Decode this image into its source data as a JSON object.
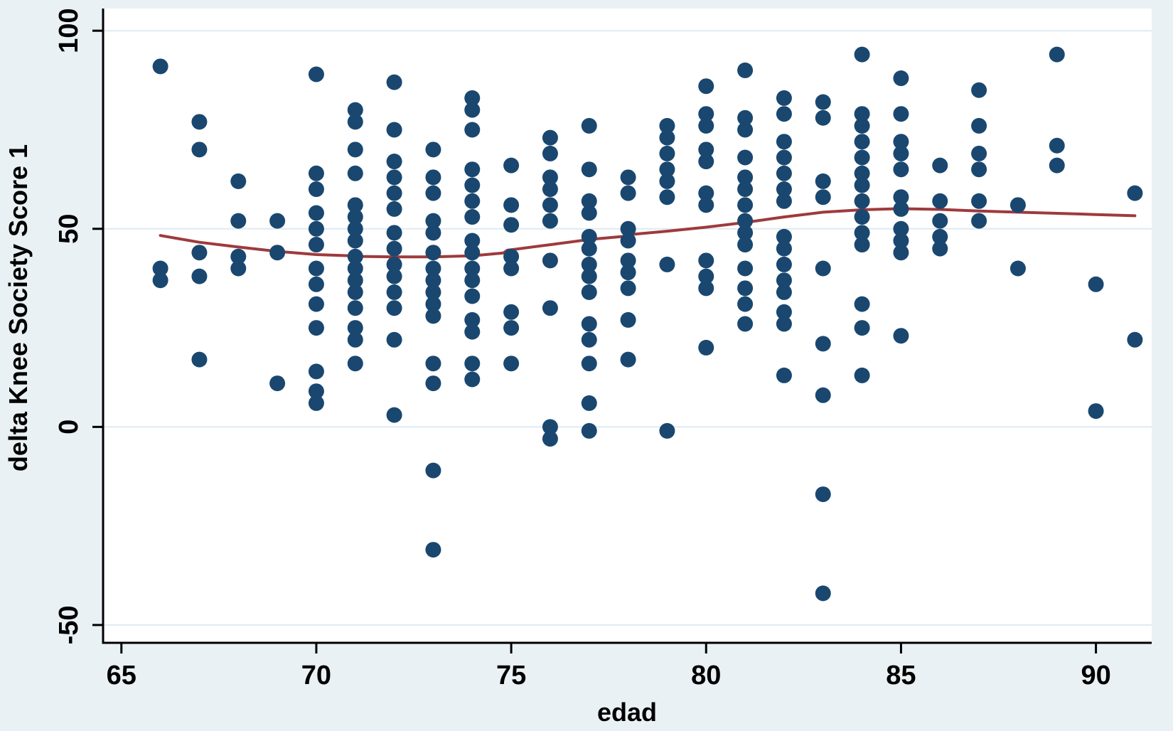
{
  "chart_data": {
    "type": "scatter",
    "title": "",
    "xlabel": "edad",
    "ylabel": "delta Knee Society Score 1",
    "x_ticks": [
      65,
      70,
      75,
      80,
      85,
      90
    ],
    "y_ticks": [
      100,
      50,
      0,
      -50
    ],
    "xlim": [
      64.53,
      91.43
    ],
    "ylim": [
      -54.5,
      105.6
    ],
    "grid": "horizontal-only",
    "legend": "none",
    "marker_shape": "filled-circle",
    "colors": {
      "marker": "#1a476f",
      "lowess_line": "#9e3a3c",
      "outer_background": "#eaf1f5",
      "plot_background": "#ffffff",
      "gridline": "#dfeaf2",
      "axis": "#000000"
    },
    "series": [
      {
        "name": "scatter",
        "points": [
          [
            66,
            91
          ],
          [
            66,
            40
          ],
          [
            66,
            37
          ],
          [
            67,
            77
          ],
          [
            67,
            70
          ],
          [
            67,
            44
          ],
          [
            67,
            38
          ],
          [
            67,
            17
          ],
          [
            68,
            62
          ],
          [
            68,
            52
          ],
          [
            68,
            43
          ],
          [
            68,
            40
          ],
          [
            69,
            52
          ],
          [
            69,
            44
          ],
          [
            69,
            11
          ],
          [
            70,
            89
          ],
          [
            70,
            64
          ],
          [
            70,
            60
          ],
          [
            70,
            54
          ],
          [
            70,
            50
          ],
          [
            70,
            46
          ],
          [
            70,
            40
          ],
          [
            70,
            36
          ],
          [
            70,
            31
          ],
          [
            70,
            25
          ],
          [
            70,
            14
          ],
          [
            70,
            9
          ],
          [
            70,
            6
          ],
          [
            71,
            80
          ],
          [
            71,
            77
          ],
          [
            71,
            70
          ],
          [
            71,
            64
          ],
          [
            71,
            56
          ],
          [
            71,
            53
          ],
          [
            71,
            50
          ],
          [
            71,
            47
          ],
          [
            71,
            43
          ],
          [
            71,
            40
          ],
          [
            71,
            37
          ],
          [
            71,
            34
          ],
          [
            71,
            30
          ],
          [
            71,
            25
          ],
          [
            71,
            22
          ],
          [
            71,
            16
          ],
          [
            72,
            87
          ],
          [
            72,
            75
          ],
          [
            72,
            67
          ],
          [
            72,
            63
          ],
          [
            72,
            59
          ],
          [
            72,
            55
          ],
          [
            72,
            49
          ],
          [
            72,
            45
          ],
          [
            72,
            41
          ],
          [
            72,
            38
          ],
          [
            72,
            34
          ],
          [
            72,
            30
          ],
          [
            72,
            22
          ],
          [
            72,
            3
          ],
          [
            73,
            70
          ],
          [
            73,
            63
          ],
          [
            73,
            59
          ],
          [
            73,
            52
          ],
          [
            73,
            49
          ],
          [
            73,
            44
          ],
          [
            73,
            40
          ],
          [
            73,
            37
          ],
          [
            73,
            34
          ],
          [
            73,
            31
          ],
          [
            73,
            28
          ],
          [
            73,
            16
          ],
          [
            73,
            11
          ],
          [
            73,
            -11
          ],
          [
            73,
            -31
          ],
          [
            74,
            83
          ],
          [
            74,
            80
          ],
          [
            74,
            75
          ],
          [
            74,
            65
          ],
          [
            74,
            61
          ],
          [
            74,
            57
          ],
          [
            74,
            53
          ],
          [
            74,
            47
          ],
          [
            74,
            44
          ],
          [
            74,
            40
          ],
          [
            74,
            37
          ],
          [
            74,
            33
          ],
          [
            74,
            27
          ],
          [
            74,
            24
          ],
          [
            74,
            16
          ],
          [
            74,
            12
          ],
          [
            75,
            66
          ],
          [
            75,
            56
          ],
          [
            75,
            51
          ],
          [
            75,
            43
          ],
          [
            75,
            40
          ],
          [
            75,
            29
          ],
          [
            75,
            25
          ],
          [
            75,
            16
          ],
          [
            76,
            73
          ],
          [
            76,
            69
          ],
          [
            76,
            63
          ],
          [
            76,
            60
          ],
          [
            76,
            56
          ],
          [
            76,
            52
          ],
          [
            76,
            42
          ],
          [
            76,
            30
          ],
          [
            76,
            0
          ],
          [
            76,
            -3
          ],
          [
            77,
            76
          ],
          [
            77,
            65
          ],
          [
            77,
            57
          ],
          [
            77,
            54
          ],
          [
            77,
            48
          ],
          [
            77,
            45
          ],
          [
            77,
            41
          ],
          [
            77,
            38
          ],
          [
            77,
            34
          ],
          [
            77,
            26
          ],
          [
            77,
            22
          ],
          [
            77,
            16
          ],
          [
            77,
            6
          ],
          [
            77,
            -1
          ],
          [
            78,
            63
          ],
          [
            78,
            59
          ],
          [
            78,
            50
          ],
          [
            78,
            47
          ],
          [
            78,
            42
          ],
          [
            78,
            39
          ],
          [
            78,
            35
          ],
          [
            78,
            27
          ],
          [
            78,
            17
          ],
          [
            79,
            76
          ],
          [
            79,
            73
          ],
          [
            79,
            69
          ],
          [
            79,
            65
          ],
          [
            79,
            62
          ],
          [
            79,
            58
          ],
          [
            79,
            41
          ],
          [
            79,
            -1
          ],
          [
            80,
            86
          ],
          [
            80,
            79
          ],
          [
            80,
            76
          ],
          [
            80,
            70
          ],
          [
            80,
            67
          ],
          [
            80,
            59
          ],
          [
            80,
            56
          ],
          [
            80,
            42
          ],
          [
            80,
            38
          ],
          [
            80,
            35
          ],
          [
            80,
            20
          ],
          [
            81,
            90
          ],
          [
            81,
            78
          ],
          [
            81,
            75
          ],
          [
            81,
            68
          ],
          [
            81,
            63
          ],
          [
            81,
            60
          ],
          [
            81,
            56
          ],
          [
            81,
            52
          ],
          [
            81,
            49
          ],
          [
            81,
            46
          ],
          [
            81,
            40
          ],
          [
            81,
            35
          ],
          [
            81,
            31
          ],
          [
            81,
            26
          ],
          [
            82,
            83
          ],
          [
            82,
            79
          ],
          [
            82,
            72
          ],
          [
            82,
            68
          ],
          [
            82,
            64
          ],
          [
            82,
            60
          ],
          [
            82,
            57
          ],
          [
            82,
            48
          ],
          [
            82,
            45
          ],
          [
            82,
            41
          ],
          [
            82,
            37
          ],
          [
            82,
            34
          ],
          [
            82,
            29
          ],
          [
            82,
            26
          ],
          [
            82,
            13
          ],
          [
            83,
            82
          ],
          [
            83,
            78
          ],
          [
            83,
            62
          ],
          [
            83,
            58
          ],
          [
            83,
            40
          ],
          [
            83,
            21
          ],
          [
            83,
            8
          ],
          [
            83,
            -17
          ],
          [
            83,
            -42
          ],
          [
            84,
            94
          ],
          [
            84,
            79
          ],
          [
            84,
            76
          ],
          [
            84,
            72
          ],
          [
            84,
            68
          ],
          [
            84,
            64
          ],
          [
            84,
            61
          ],
          [
            84,
            57
          ],
          [
            84,
            53
          ],
          [
            84,
            49
          ],
          [
            84,
            46
          ],
          [
            84,
            31
          ],
          [
            84,
            25
          ],
          [
            84,
            13
          ],
          [
            85,
            88
          ],
          [
            85,
            79
          ],
          [
            85,
            72
          ],
          [
            85,
            69
          ],
          [
            85,
            65
          ],
          [
            85,
            58
          ],
          [
            85,
            55
          ],
          [
            85,
            50
          ],
          [
            85,
            47
          ],
          [
            85,
            44
          ],
          [
            85,
            23
          ],
          [
            86,
            66
          ],
          [
            86,
            57
          ],
          [
            86,
            52
          ],
          [
            86,
            48
          ],
          [
            86,
            45
          ],
          [
            87,
            85
          ],
          [
            87,
            76
          ],
          [
            87,
            69
          ],
          [
            87,
            65
          ],
          [
            87,
            57
          ],
          [
            87,
            52
          ],
          [
            88,
            56
          ],
          [
            88,
            40
          ],
          [
            89,
            94
          ],
          [
            89,
            71
          ],
          [
            89,
            66
          ],
          [
            90,
            36
          ],
          [
            90,
            4
          ],
          [
            91,
            59
          ],
          [
            91,
            22
          ]
        ]
      },
      {
        "name": "lowess",
        "points": [
          [
            66,
            48.3
          ],
          [
            67,
            46.6
          ],
          [
            68,
            45.4
          ],
          [
            69,
            44.3
          ],
          [
            70,
            43.5
          ],
          [
            70.9,
            43.2
          ],
          [
            71,
            43.05
          ],
          [
            72,
            42.9
          ],
          [
            73,
            42.9
          ],
          [
            74,
            43.2
          ],
          [
            74.8,
            43.9
          ],
          [
            74.9,
            44.6
          ],
          [
            75,
            44.7
          ],
          [
            76,
            46.0
          ],
          [
            77,
            47.3
          ],
          [
            77.9,
            48.1
          ],
          [
            78,
            48.5
          ],
          [
            79,
            49.4
          ],
          [
            80,
            50.4
          ],
          [
            81,
            51.6
          ],
          [
            82,
            53.0
          ],
          [
            83,
            54.2
          ],
          [
            84,
            54.8
          ],
          [
            85,
            55.1
          ],
          [
            86,
            54.9
          ],
          [
            87,
            54.5
          ],
          [
            88,
            54.2
          ],
          [
            89,
            53.9
          ],
          [
            90,
            53.6
          ],
          [
            91,
            53.3
          ]
        ]
      }
    ]
  }
}
